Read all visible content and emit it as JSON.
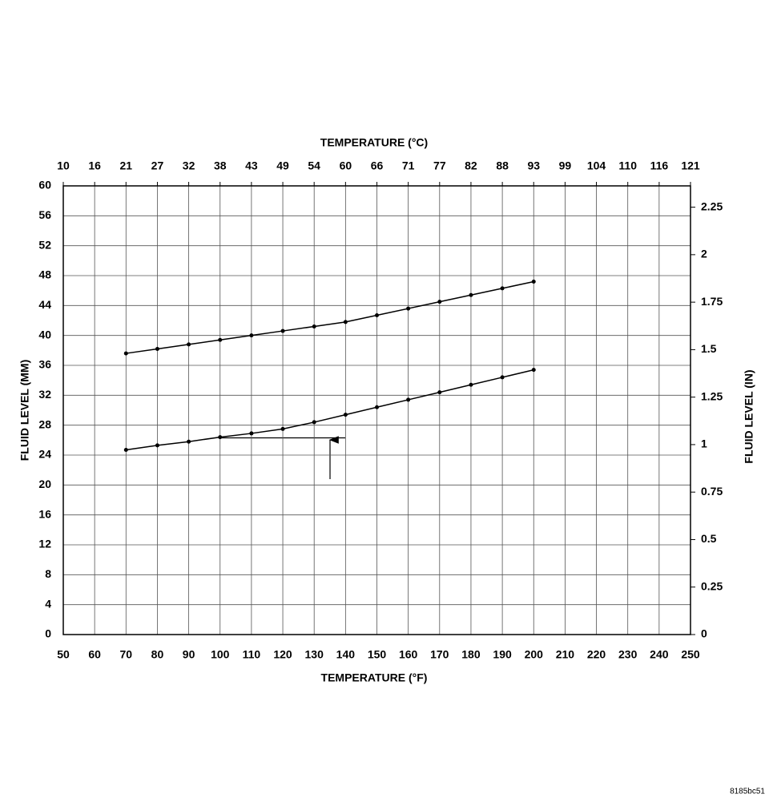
{
  "chart_data": {
    "type": "line",
    "x_label": "TEMPERATURE (°F)",
    "x2_label": "TEMPERATURE (°C)",
    "y_label": "FLUID LEVEL (MM)",
    "y2_label": "FLUID LEVEL (IN)",
    "caption": "8185bc51",
    "x": [
      70,
      80,
      90,
      100,
      110,
      120,
      130,
      140,
      150,
      160,
      170,
      180,
      190,
      200
    ],
    "series": [
      {
        "color": "#000000",
        "values": [
          37.6,
          38.2,
          38.8,
          39.4,
          40.0,
          40.6,
          41.2,
          41.8,
          42.7,
          43.6,
          44.5,
          45.4,
          46.3,
          47.2
        ]
      },
      {
        "color": "#000000",
        "values": [
          24.7,
          25.3,
          25.8,
          26.4,
          26.9,
          27.5,
          28.4,
          29.4,
          30.4,
          31.4,
          32.4,
          33.4,
          34.4,
          35.4
        ]
      }
    ],
    "xlim": [
      50,
      250
    ],
    "xticks": [
      50,
      60,
      70,
      80,
      90,
      100,
      110,
      120,
      130,
      140,
      150,
      160,
      170,
      180,
      190,
      200,
      210,
      220,
      230,
      240,
      250
    ],
    "x2lim": [
      10,
      121.11
    ],
    "x2ticks": [
      10,
      {
        "value": 15.56,
        "label": "16"
      },
      {
        "value": 21.11,
        "label": "21"
      },
      {
        "value": 26.67,
        "label": "27"
      },
      {
        "value": 32.22,
        "label": "32"
      },
      {
        "value": 37.78,
        "label": "38"
      },
      {
        "value": 43.33,
        "label": "43"
      },
      {
        "value": 48.89,
        "label": "49"
      },
      {
        "value": 54.44,
        "label": "54"
      },
      60,
      {
        "value": 65.56,
        "label": "66"
      },
      {
        "value": 71.11,
        "label": "71"
      },
      {
        "value": 76.67,
        "label": "77"
      },
      {
        "value": 82.22,
        "label": "82"
      },
      {
        "value": 87.78,
        "label": "88"
      },
      {
        "value": 93.33,
        "label": "93"
      },
      {
        "value": 98.89,
        "label": "99"
      },
      {
        "value": 104.44,
        "label": "104"
      },
      110,
      {
        "value": 115.56,
        "label": "116"
      },
      {
        "value": 121.11,
        "label": "121"
      }
    ],
    "ylim": [
      0,
      60
    ],
    "yticks": [
      0,
      4,
      8,
      12,
      16,
      20,
      24,
      28,
      32,
      36,
      40,
      44,
      48,
      52,
      56,
      60
    ],
    "y2lim": [
      0,
      2.3622
    ],
    "y2ticks": [
      0,
      0.25,
      0.5,
      0.75,
      1,
      1.25,
      1.5,
      1.75,
      2,
      2.25
    ],
    "grid": true
  }
}
